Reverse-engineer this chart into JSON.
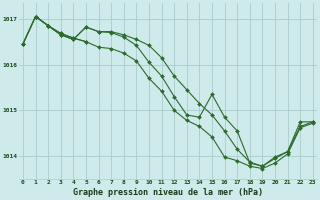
{
  "title": "Graphe pression niveau de la mer (hPa)",
  "background_color": "#ceeaea",
  "grid_color": "#a8cccc",
  "line_color": "#2d6a2d",
  "x_hours": [
    0,
    1,
    2,
    3,
    4,
    5,
    6,
    7,
    8,
    9,
    10,
    11,
    12,
    13,
    14,
    15,
    16,
    17,
    18,
    19,
    20,
    21,
    22,
    23
  ],
  "series": [
    [
      1016.45,
      1017.05,
      1016.85,
      1016.65,
      1016.55,
      1016.82,
      1016.72,
      1016.7,
      1016.6,
      1016.42,
      1016.05,
      1015.75,
      1015.3,
      1014.9,
      1014.85,
      1015.35,
      1014.85,
      1014.55,
      1013.85,
      1013.78,
      1013.98,
      1014.1,
      1014.75,
      1014.75
    ],
    [
      1016.45,
      1017.05,
      1016.85,
      1016.65,
      1016.55,
      1016.82,
      1016.72,
      1016.72,
      1016.65,
      1016.55,
      1016.42,
      1016.15,
      1015.75,
      1015.45,
      1015.15,
      1014.9,
      1014.55,
      1014.15,
      1013.87,
      1013.78,
      1013.95,
      1014.1,
      1014.65,
      1014.75
    ],
    [
      1016.45,
      1017.05,
      1016.85,
      1016.68,
      1016.58,
      1016.5,
      1016.38,
      1016.35,
      1016.25,
      1016.08,
      1015.7,
      1015.42,
      1015.0,
      1014.78,
      1014.65,
      1014.42,
      1013.98,
      1013.9,
      1013.78,
      1013.73,
      1013.85,
      1014.05,
      1014.62,
      1014.72
    ],
    [
      null,
      1017.05,
      1016.85,
      1016.68,
      1016.58,
      1016.5,
      null,
      null,
      null,
      null,
      null,
      null,
      null,
      null,
      null,
      null,
      null,
      null,
      null,
      null,
      null,
      null,
      null,
      null
    ]
  ],
  "ylim": [
    1013.5,
    1017.35
  ],
  "yticks": [
    1014,
    1015,
    1016,
    1017
  ],
  "xlim": [
    -0.3,
    23.3
  ],
  "xticks": [
    0,
    1,
    2,
    3,
    4,
    5,
    6,
    7,
    8,
    9,
    10,
    11,
    12,
    13,
    14,
    15,
    16,
    17,
    18,
    19,
    20,
    21,
    22,
    23
  ]
}
